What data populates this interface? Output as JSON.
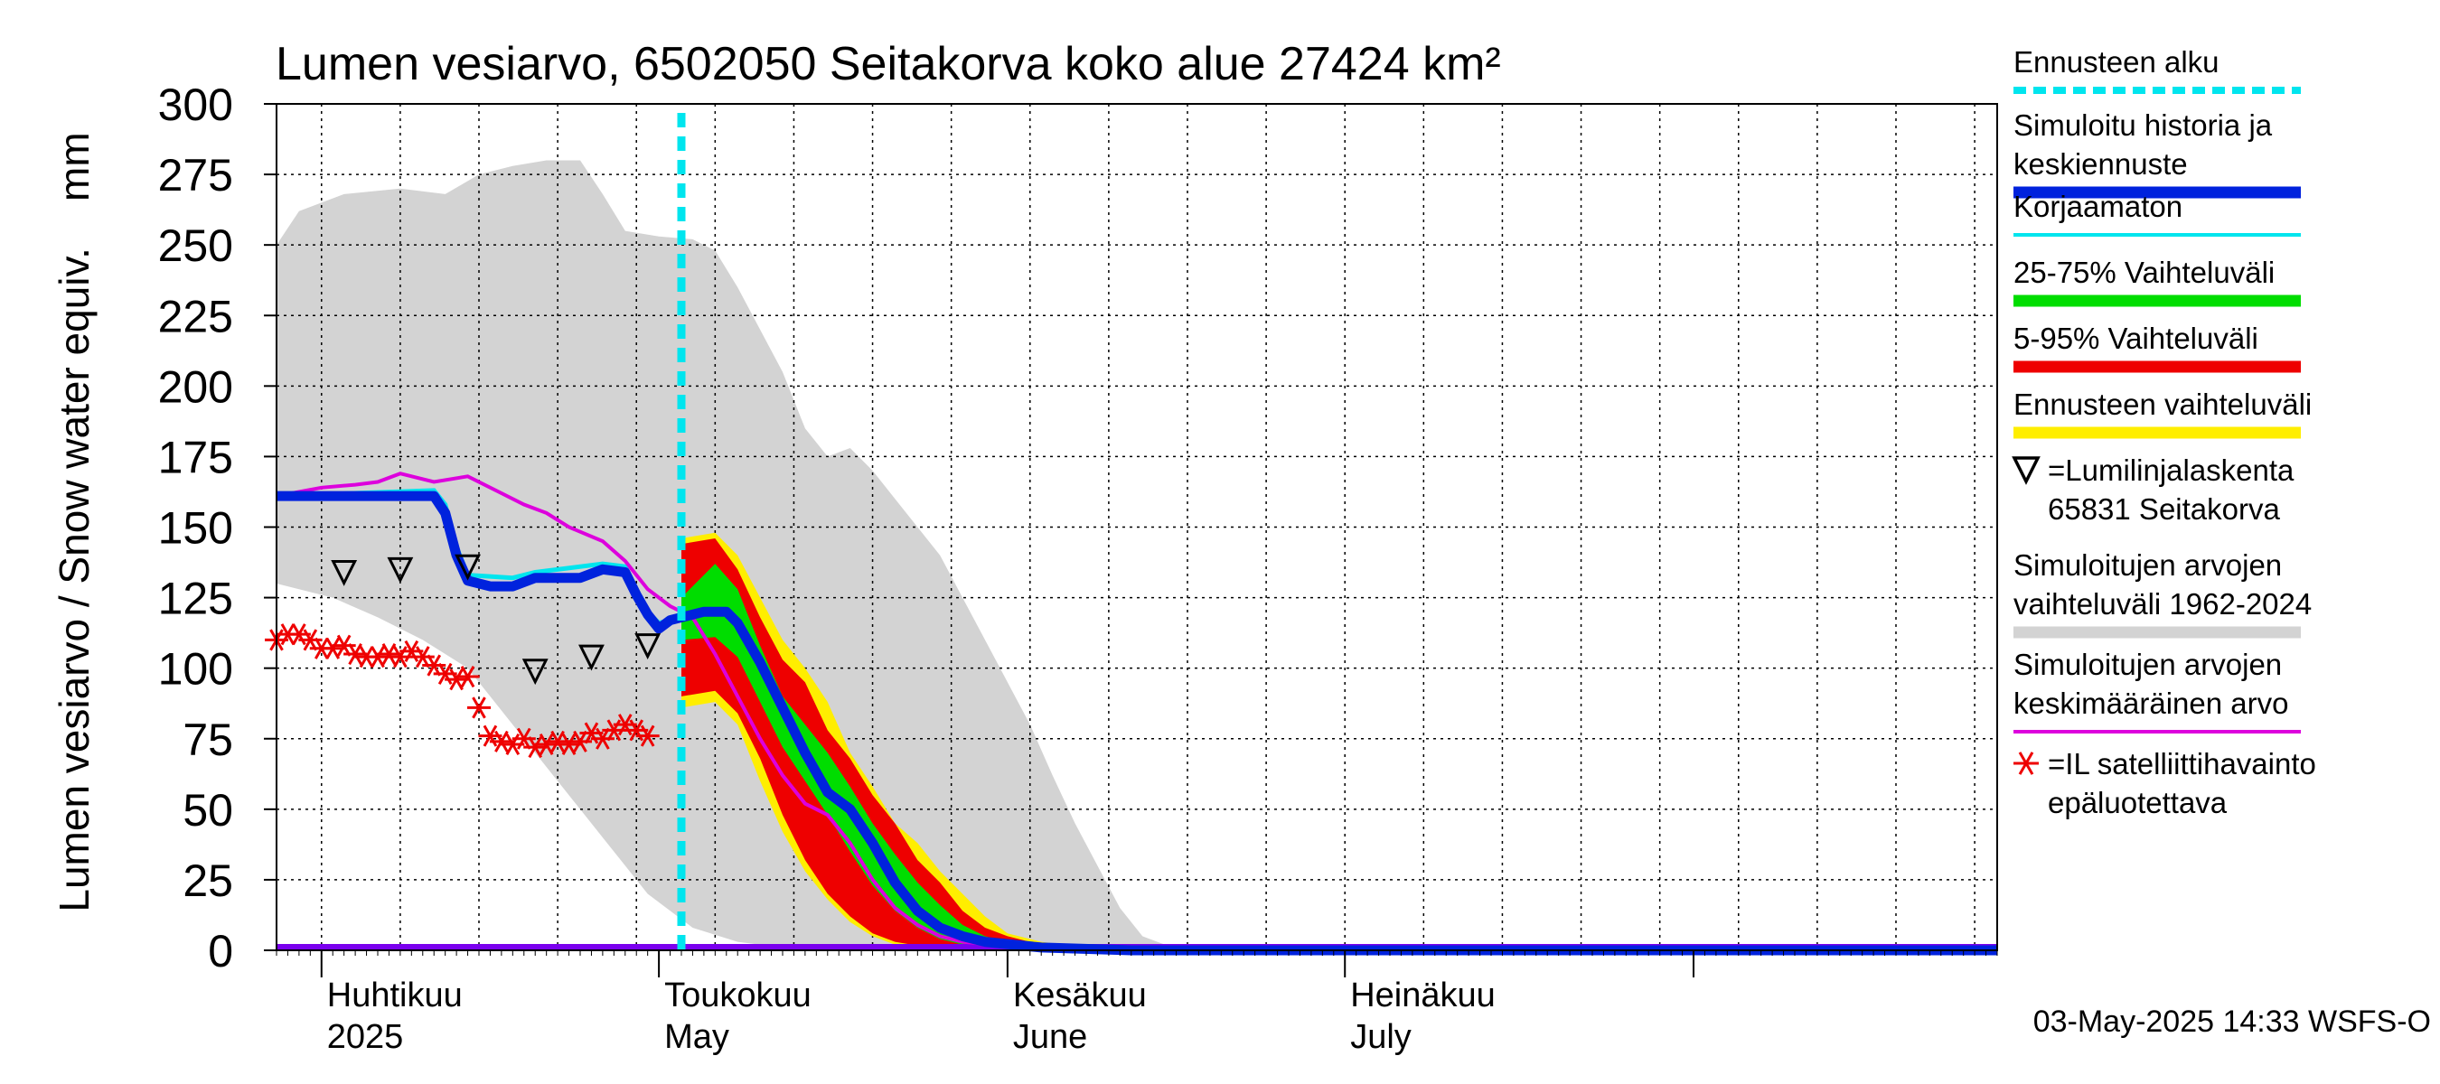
{
  "chart_data": {
    "type": "area",
    "title": "Lumen vesiarvo, 6502050 Seitakorva koko alue 27424 km²",
    "ylabel": "Lumen vesiarvo / Snow water equiv.    mm",
    "ylim": [
      0,
      300
    ],
    "yticks": [
      "0",
      "25",
      "50",
      "75",
      "100",
      "125",
      "150",
      "175",
      "200",
      "225",
      "250",
      "275",
      "300"
    ],
    "grid": true,
    "x_start": "2025-03-28",
    "x_end": "2025-08-28",
    "month_labels": [
      {
        "fi": "Huhtikuu",
        "en": "2025",
        "date": "2025-04-01"
      },
      {
        "fi": "Toukokuu",
        "en": "May",
        "date": "2025-05-01"
      },
      {
        "fi": "Kesäkuu",
        "en": "June",
        "date": "2025-06-01"
      },
      {
        "fi": "Heinäkuu",
        "en": "July",
        "date": "2025-07-01"
      }
    ],
    "forecast_start": "2025-05-03",
    "footer": "03-May-2025 14:33 WSFS-O",
    "legend": [
      {
        "label": "Ennusteen alku",
        "color": "#00e5ee",
        "style": "dashed"
      },
      {
        "label": "Simuloitu historia ja\nkeskiennuste",
        "color": "#0022dd",
        "style": "thick"
      },
      {
        "label": "Korjaamaton",
        "color": "#00e5ee",
        "style": "line"
      },
      {
        "label": "25-75% Vaihteluväli",
        "color": "#00dd00",
        "style": "thick"
      },
      {
        "label": "5-95% Vaihteluväli",
        "color": "#ee0000",
        "style": "thick"
      },
      {
        "label": "Ennusteen vaihteluväli",
        "color": "#ffee00",
        "style": "thick"
      },
      {
        "label": "=Lumilinjalaskenta\n65831 Seitakorva",
        "color": "#000000",
        "style": "triangle"
      },
      {
        "label": "Simuloitujen arvojen\nvaihteluväli 1962-2024",
        "color": "#d3d3d3",
        "style": "thick"
      },
      {
        "label": "Simuloitujen arvojen\nkeskimääräinen arvo",
        "color": "#dd00dd",
        "style": "line"
      },
      {
        "label": "=IL satelliittihavainto\nepäluotettava",
        "color": "#ee0000",
        "style": "star"
      }
    ],
    "series": {
      "hist_range_upper": [
        [
          "2025-03-28",
          250
        ],
        [
          "2025-03-30",
          262
        ],
        [
          "2025-04-03",
          268
        ],
        [
          "2025-04-08",
          270
        ],
        [
          "2025-04-12",
          268
        ],
        [
          "2025-04-15",
          275
        ],
        [
          "2025-04-18",
          278
        ],
        [
          "2025-04-21",
          280
        ],
        [
          "2025-04-24",
          280
        ],
        [
          "2025-04-26",
          268
        ],
        [
          "2025-04-28",
          255
        ],
        [
          "2025-05-01",
          253
        ],
        [
          "2025-05-04",
          252
        ],
        [
          "2025-05-06",
          248
        ],
        [
          "2025-05-08",
          235
        ],
        [
          "2025-05-10",
          220
        ],
        [
          "2025-05-12",
          205
        ],
        [
          "2025-05-14",
          185
        ],
        [
          "2025-05-16",
          175
        ],
        [
          "2025-05-18",
          178
        ],
        [
          "2025-05-20",
          170
        ],
        [
          "2025-05-22",
          160
        ],
        [
          "2025-05-24",
          150
        ],
        [
          "2025-05-26",
          140
        ],
        [
          "2025-05-28",
          125
        ],
        [
          "2025-05-30",
          110
        ],
        [
          "2025-06-01",
          95
        ],
        [
          "2025-06-03",
          80
        ],
        [
          "2025-06-05",
          62
        ],
        [
          "2025-06-07",
          45
        ],
        [
          "2025-06-09",
          30
        ],
        [
          "2025-06-11",
          15
        ],
        [
          "2025-06-13",
          5
        ],
        [
          "2025-06-15",
          2
        ],
        [
          "2025-06-20",
          1
        ],
        [
          "2025-08-28",
          0
        ]
      ],
      "hist_range_lower": [
        [
          "2025-03-28",
          130
        ],
        [
          "2025-04-02",
          125
        ],
        [
          "2025-04-06",
          118
        ],
        [
          "2025-04-10",
          110
        ],
        [
          "2025-04-14",
          100
        ],
        [
          "2025-04-18",
          80
        ],
        [
          "2025-04-22",
          60
        ],
        [
          "2025-04-26",
          40
        ],
        [
          "2025-04-30",
          20
        ],
        [
          "2025-05-04",
          8
        ],
        [
          "2025-05-08",
          3
        ],
        [
          "2025-05-12",
          1
        ],
        [
          "2025-05-16",
          0
        ],
        [
          "2025-08-28",
          0
        ]
      ],
      "forecast_range": {
        "upper": [
          [
            "2025-05-03",
            146
          ],
          [
            "2025-05-06",
            148
          ],
          [
            "2025-05-08",
            140
          ],
          [
            "2025-05-10",
            125
          ],
          [
            "2025-05-12",
            110
          ],
          [
            "2025-05-14",
            100
          ],
          [
            "2025-05-16",
            88
          ],
          [
            "2025-05-18",
            70
          ],
          [
            "2025-05-20",
            58
          ],
          [
            "2025-05-22",
            45
          ],
          [
            "2025-05-24",
            38
          ],
          [
            "2025-05-26",
            28
          ],
          [
            "2025-05-28",
            20
          ],
          [
            "2025-05-30",
            12
          ],
          [
            "2025-06-01",
            6
          ],
          [
            "2025-06-04",
            3
          ],
          [
            "2025-06-08",
            1
          ],
          [
            "2025-06-15",
            0
          ],
          [
            "2025-08-28",
            0
          ]
        ],
        "lower": [
          [
            "2025-05-03",
            86
          ],
          [
            "2025-05-06",
            88
          ],
          [
            "2025-05-08",
            80
          ],
          [
            "2025-05-10",
            60
          ],
          [
            "2025-05-12",
            42
          ],
          [
            "2025-05-14",
            28
          ],
          [
            "2025-05-16",
            18
          ],
          [
            "2025-05-18",
            10
          ],
          [
            "2025-05-20",
            5
          ],
          [
            "2025-05-22",
            2
          ],
          [
            "2025-05-25",
            0
          ],
          [
            "2025-08-28",
            0
          ]
        ]
      },
      "p5_95": {
        "upper": [
          [
            "2025-05-03",
            144
          ],
          [
            "2025-05-06",
            146
          ],
          [
            "2025-05-08",
            135
          ],
          [
            "2025-05-10",
            118
          ],
          [
            "2025-05-12",
            103
          ],
          [
            "2025-05-14",
            95
          ],
          [
            "2025-05-16",
            78
          ],
          [
            "2025-05-18",
            68
          ],
          [
            "2025-05-20",
            55
          ],
          [
            "2025-05-22",
            45
          ],
          [
            "2025-05-24",
            32
          ],
          [
            "2025-05-26",
            24
          ],
          [
            "2025-05-28",
            14
          ],
          [
            "2025-05-30",
            8
          ],
          [
            "2025-06-01",
            5
          ],
          [
            "2025-06-04",
            2
          ],
          [
            "2025-06-08",
            1
          ],
          [
            "2025-06-15",
            0
          ],
          [
            "2025-08-28",
            0
          ]
        ],
        "lower": [
          [
            "2025-05-03",
            90
          ],
          [
            "2025-05-06",
            92
          ],
          [
            "2025-05-08",
            84
          ],
          [
            "2025-05-10",
            68
          ],
          [
            "2025-05-12",
            48
          ],
          [
            "2025-05-14",
            32
          ],
          [
            "2025-05-16",
            20
          ],
          [
            "2025-05-18",
            12
          ],
          [
            "2025-05-20",
            6
          ],
          [
            "2025-05-22",
            3
          ],
          [
            "2025-05-25",
            1
          ],
          [
            "2025-08-28",
            0
          ]
        ]
      },
      "p25_75": {
        "upper": [
          [
            "2025-05-03",
            125
          ],
          [
            "2025-05-06",
            137
          ],
          [
            "2025-05-08",
            128
          ],
          [
            "2025-05-10",
            108
          ],
          [
            "2025-05-12",
            90
          ],
          [
            "2025-05-14",
            80
          ],
          [
            "2025-05-16",
            70
          ],
          [
            "2025-05-18",
            58
          ],
          [
            "2025-05-20",
            45
          ],
          [
            "2025-05-22",
            34
          ],
          [
            "2025-05-24",
            24
          ],
          [
            "2025-05-26",
            16
          ],
          [
            "2025-05-28",
            9
          ],
          [
            "2025-05-30",
            5
          ],
          [
            "2025-06-01",
            3
          ],
          [
            "2025-06-04",
            1
          ],
          [
            "2025-06-10",
            0
          ],
          [
            "2025-08-28",
            0
          ]
        ],
        "lower": [
          [
            "2025-05-03",
            110
          ],
          [
            "2025-05-06",
            111
          ],
          [
            "2025-05-08",
            104
          ],
          [
            "2025-05-10",
            88
          ],
          [
            "2025-05-12",
            72
          ],
          [
            "2025-05-14",
            60
          ],
          [
            "2025-05-16",
            48
          ],
          [
            "2025-05-18",
            35
          ],
          [
            "2025-05-20",
            23
          ],
          [
            "2025-05-22",
            14
          ],
          [
            "2025-05-24",
            8
          ],
          [
            "2025-05-26",
            4
          ],
          [
            "2025-05-28",
            2
          ],
          [
            "2025-06-01",
            0
          ],
          [
            "2025-08-28",
            0
          ]
        ]
      },
      "simulated": [
        [
          "2025-03-28",
          161
        ],
        [
          "2025-04-03",
          161
        ],
        [
          "2025-04-08",
          161
        ],
        [
          "2025-04-11",
          161
        ],
        [
          "2025-04-12",
          155
        ],
        [
          "2025-04-13",
          140
        ],
        [
          "2025-04-14",
          131
        ],
        [
          "2025-04-16",
          129
        ],
        [
          "2025-04-18",
          129
        ],
        [
          "2025-04-20",
          132
        ],
        [
          "2025-04-22",
          132
        ],
        [
          "2025-04-24",
          132
        ],
        [
          "2025-04-26",
          135
        ],
        [
          "2025-04-28",
          134
        ],
        [
          "2025-04-29",
          126
        ],
        [
          "2025-04-30",
          119
        ],
        [
          "2025-05-01",
          114
        ],
        [
          "2025-05-02",
          117
        ],
        [
          "2025-05-03",
          118
        ],
        [
          "2025-05-05",
          120
        ],
        [
          "2025-05-07",
          120
        ],
        [
          "2025-05-08",
          116
        ],
        [
          "2025-05-10",
          102
        ],
        [
          "2025-05-12",
          86
        ],
        [
          "2025-05-14",
          70
        ],
        [
          "2025-05-16",
          56
        ],
        [
          "2025-05-18",
          50
        ],
        [
          "2025-05-20",
          38
        ],
        [
          "2025-05-22",
          24
        ],
        [
          "2025-05-24",
          14
        ],
        [
          "2025-05-26",
          8
        ],
        [
          "2025-05-28",
          5
        ],
        [
          "2025-05-30",
          3
        ],
        [
          "2025-06-04",
          1
        ],
        [
          "2025-06-12",
          0
        ],
        [
          "2025-08-28",
          0
        ]
      ],
      "uncorrected": [
        [
          "2025-03-28",
          161
        ],
        [
          "2025-04-11",
          163
        ],
        [
          "2025-04-12",
          158
        ],
        [
          "2025-04-13",
          143
        ],
        [
          "2025-04-14",
          133
        ],
        [
          "2025-04-18",
          132
        ],
        [
          "2025-04-20",
          134
        ],
        [
          "2025-04-26",
          137
        ],
        [
          "2025-04-28",
          136
        ],
        [
          "2025-04-29",
          128
        ],
        [
          "2025-04-30",
          120
        ],
        [
          "2025-05-01",
          116
        ],
        [
          "2025-05-03",
          118
        ]
      ],
      "mean": [
        [
          "2025-03-28",
          161
        ],
        [
          "2025-04-01",
          164
        ],
        [
          "2025-04-04",
          165
        ],
        [
          "2025-04-06",
          166
        ],
        [
          "2025-04-08",
          169
        ],
        [
          "2025-04-11",
          166
        ],
        [
          "2025-04-14",
          168
        ],
        [
          "2025-04-17",
          162
        ],
        [
          "2025-04-19",
          158
        ],
        [
          "2025-04-21",
          155
        ],
        [
          "2025-04-23",
          150
        ],
        [
          "2025-04-26",
          145
        ],
        [
          "2025-04-28",
          138
        ],
        [
          "2025-04-30",
          128
        ],
        [
          "2025-05-02",
          122
        ],
        [
          "2025-05-04",
          118
        ],
        [
          "2025-05-06",
          105
        ],
        [
          "2025-05-08",
          90
        ],
        [
          "2025-05-10",
          75
        ],
        [
          "2025-05-12",
          62
        ],
        [
          "2025-05-14",
          52
        ],
        [
          "2025-05-16",
          48
        ],
        [
          "2025-05-18",
          38
        ],
        [
          "2025-05-20",
          25
        ],
        [
          "2025-05-22",
          15
        ],
        [
          "2025-05-24",
          9
        ],
        [
          "2025-05-26",
          5
        ],
        [
          "2025-05-28",
          3
        ],
        [
          "2025-06-03",
          1
        ],
        [
          "2025-06-12",
          0
        ],
        [
          "2025-08-28",
          0
        ]
      ],
      "snow_course": [
        [
          "2025-04-03",
          134
        ],
        [
          "2025-04-08",
          135
        ],
        [
          "2025-04-14",
          136
        ],
        [
          "2025-04-20",
          99
        ],
        [
          "2025-04-25",
          104
        ],
        [
          "2025-04-30",
          108
        ]
      ],
      "satellite": [
        [
          "2025-03-28",
          110
        ],
        [
          "2025-03-29",
          112
        ],
        [
          "2025-03-30",
          112
        ],
        [
          "2025-03-31",
          110
        ],
        [
          "2025-04-01",
          107
        ],
        [
          "2025-04-02",
          107
        ],
        [
          "2025-04-03",
          108
        ],
        [
          "2025-04-04",
          105
        ],
        [
          "2025-04-05",
          104
        ],
        [
          "2025-04-06",
          104
        ],
        [
          "2025-04-07",
          105
        ],
        [
          "2025-04-08",
          104
        ],
        [
          "2025-04-09",
          106
        ],
        [
          "2025-04-10",
          104
        ],
        [
          "2025-04-11",
          101
        ],
        [
          "2025-04-12",
          98
        ],
        [
          "2025-04-13",
          96
        ],
        [
          "2025-04-14",
          97
        ],
        [
          "2025-04-15",
          86
        ],
        [
          "2025-04-16",
          76
        ],
        [
          "2025-04-17",
          74
        ],
        [
          "2025-04-18",
          73
        ],
        [
          "2025-04-19",
          75
        ],
        [
          "2025-04-20",
          72
        ],
        [
          "2025-04-21",
          73
        ],
        [
          "2025-04-22",
          74
        ],
        [
          "2025-04-23",
          73
        ],
        [
          "2025-04-24",
          74
        ],
        [
          "2025-04-25",
          77
        ],
        [
          "2025-04-26",
          75
        ],
        [
          "2025-04-27",
          78
        ],
        [
          "2025-04-28",
          80
        ],
        [
          "2025-04-29",
          78
        ],
        [
          "2025-04-30",
          76
        ]
      ]
    }
  }
}
